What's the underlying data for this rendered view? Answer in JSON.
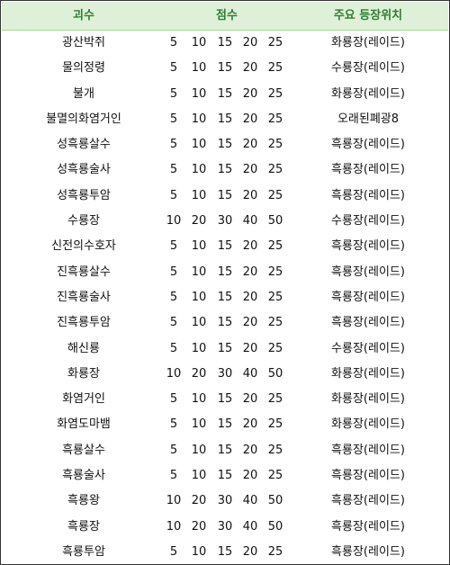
{
  "header": {
    "name": "괴수",
    "score": "점수",
    "location": "주요 등장위치"
  },
  "rows": [
    {
      "name": "광산박쥐",
      "scores": [
        "5",
        "10",
        "15",
        "20",
        "25"
      ],
      "location": "화룡장(레이드)"
    },
    {
      "name": "물의정령",
      "scores": [
        "5",
        "10",
        "15",
        "20",
        "25"
      ],
      "location": "수룡장(레이드)"
    },
    {
      "name": "불개",
      "scores": [
        "5",
        "10",
        "15",
        "20",
        "25"
      ],
      "location": "화룡장(레이드)"
    },
    {
      "name": "불멸의화염거인",
      "scores": [
        "5",
        "10",
        "15",
        "20",
        "25"
      ],
      "location": "오래된폐광8"
    },
    {
      "name": "성흑룡살수",
      "scores": [
        "5",
        "10",
        "15",
        "20",
        "25"
      ],
      "location": "흑룡장(레이드)"
    },
    {
      "name": "성흑룡술사",
      "scores": [
        "5",
        "10",
        "15",
        "20",
        "25"
      ],
      "location": "흑룡장(레이드)"
    },
    {
      "name": "성흑룡투암",
      "scores": [
        "5",
        "10",
        "15",
        "20",
        "25"
      ],
      "location": "흑룡장(레이드)"
    },
    {
      "name": "수룡장",
      "scores": [
        "10",
        "20",
        "30",
        "40",
        "50"
      ],
      "location": "수룡장(레이드)"
    },
    {
      "name": "신전의수호자",
      "scores": [
        "5",
        "10",
        "15",
        "20",
        "25"
      ],
      "location": "흑룡장(레이드)"
    },
    {
      "name": "진흑룡살수",
      "scores": [
        "5",
        "10",
        "15",
        "20",
        "25"
      ],
      "location": "흑룡장(레이드)"
    },
    {
      "name": "진흑룡술사",
      "scores": [
        "5",
        "10",
        "15",
        "20",
        "25"
      ],
      "location": "흑룡장(레이드)"
    },
    {
      "name": "진흑룡투암",
      "scores": [
        "5",
        "10",
        "15",
        "20",
        "25"
      ],
      "location": "흑룡장(레이드)"
    },
    {
      "name": "해신룡",
      "scores": [
        "5",
        "10",
        "15",
        "20",
        "25"
      ],
      "location": "수룡장(레이드)"
    },
    {
      "name": "화룡장",
      "scores": [
        "10",
        "20",
        "30",
        "40",
        "50"
      ],
      "location": "화룡장(레이드)"
    },
    {
      "name": "화염거인",
      "scores": [
        "5",
        "10",
        "15",
        "20",
        "25"
      ],
      "location": "화룡장(레이드)"
    },
    {
      "name": "화염도마뱀",
      "scores": [
        "5",
        "10",
        "15",
        "20",
        "25"
      ],
      "location": "화룡장(레이드)"
    },
    {
      "name": "흑룡살수",
      "scores": [
        "5",
        "10",
        "15",
        "20",
        "25"
      ],
      "location": "흑룡장(레이드)"
    },
    {
      "name": "흑룡술사",
      "scores": [
        "5",
        "10",
        "15",
        "20",
        "25"
      ],
      "location": "흑룡장(레이드)"
    },
    {
      "name": "흑룡왕",
      "scores": [
        "10",
        "20",
        "30",
        "40",
        "50"
      ],
      "location": "흑룡장(레이드)"
    },
    {
      "name": "흑룡장",
      "scores": [
        "10",
        "20",
        "30",
        "40",
        "50"
      ],
      "location": "흑룡장(레이드)"
    },
    {
      "name": "흑룡투암",
      "scores": [
        "5",
        "10",
        "15",
        "20",
        "25"
      ],
      "location": "흑룡장(레이드)"
    }
  ]
}
